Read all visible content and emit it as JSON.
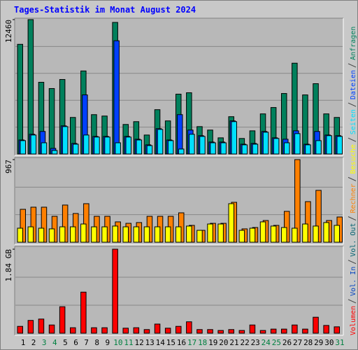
{
  "title": "Tages-Statistik im Monat August 2024",
  "chart_data": [
    {
      "type": "bar",
      "ylim": [
        0,
        12460
      ],
      "yticks": [
        12460
      ],
      "series": [
        {
          "name": "Anfragen",
          "color": "#00805c",
          "values": [
            10170,
            12460,
            6650,
            6070,
            6910,
            3390,
            7700,
            3650,
            3520,
            12200,
            2740,
            3000,
            1760,
            4110,
            3070,
            5550,
            5680,
            2540,
            2220,
            1500,
            3460,
            1440,
            2150,
            3720,
            4310,
            5610,
            8420,
            5480,
            6520,
            3720,
            3390
          ]
        },
        {
          "name": "Dateien",
          "color": "#0040ff",
          "values": [
            1300,
            1830,
            2090,
            520,
            2610,
            980,
            5480,
            1630,
            1630,
            10500,
            1630,
            1370,
            850,
            2350,
            1300,
            3650,
            2220,
            1700,
            1110,
            1110,
            3070,
            910,
            980,
            2090,
            1500,
            1370,
            2150,
            910,
            2090,
            1760,
            1700
          ]
        },
        {
          "name": "Seiten",
          "color": "#00e0ff",
          "values": [
            1240,
            1760,
            1040,
            330,
            2540,
            910,
            1760,
            1570,
            1570,
            1040,
            1570,
            1300,
            780,
            2280,
            1240,
            460,
            1830,
            1630,
            1040,
            1040,
            3000,
            850,
            910,
            2020,
            1440,
            1040,
            1890,
            850,
            1240,
            1700,
            1630
          ]
        }
      ]
    },
    {
      "type": "bar",
      "ylim": [
        0,
        967
      ],
      "yticks": [
        967
      ],
      "series": [
        {
          "name": "Besuche",
          "color": "#ffff00",
          "values": [
            164,
            180,
            164,
            156,
            180,
            180,
            213,
            180,
            180,
            189,
            180,
            180,
            180,
            180,
            180,
            180,
            189,
            139,
            213,
            213,
            451,
            139,
            164,
            238,
            189,
            172,
            164,
            213,
            189,
            230,
            197
          ]
        },
        {
          "name": "Rechner",
          "color": "#ff8000",
          "values": [
            385,
            410,
            410,
            303,
            435,
            336,
            451,
            303,
            303,
            238,
            221,
            230,
            303,
            303,
            303,
            344,
            197,
            139,
            221,
            221,
            467,
            156,
            172,
            254,
            197,
            361,
            967,
            475,
            607,
            254,
            295
          ]
        }
      ]
    },
    {
      "type": "bar",
      "ylim": [
        0,
        1.84
      ],
      "yticks": [
        {
          "value": 1.84,
          "label": "1.84 GB"
        }
      ],
      "categories": [
        "1",
        "2",
        "3",
        "4",
        "5",
        "6",
        "7",
        "8",
        "9",
        "10",
        "11",
        "12",
        "13",
        "14",
        "15",
        "16",
        "17",
        "18",
        "19",
        "20",
        "21",
        "22",
        "23",
        "24",
        "25",
        "26",
        "27",
        "28",
        "29",
        "30",
        "31"
      ],
      "category_colors": [
        "#000000",
        "#000000",
        "#008040",
        "#008040",
        "#000000",
        "#000000",
        "#000000",
        "#000000",
        "#000000",
        "#008040",
        "#008040",
        "#000000",
        "#000000",
        "#000000",
        "#000000",
        "#000000",
        "#008040",
        "#008040",
        "#000000",
        "#000000",
        "#000000",
        "#000000",
        "#000000",
        "#008040",
        "#008040",
        "#000000",
        "#000000",
        "#000000",
        "#000000",
        "#000000",
        "#008040"
      ],
      "series": [
        {
          "name": "Vol. Out",
          "color": "#006070"
        },
        {
          "name": "Vol. In",
          "color": "#0040c0"
        },
        {
          "name": "Volumen",
          "color": "#ff0000",
          "values": [
            0.15,
            0.28,
            0.31,
            0.18,
            0.58,
            0.12,
            0.9,
            0.12,
            0.12,
            1.84,
            0.11,
            0.12,
            0.08,
            0.2,
            0.11,
            0.15,
            0.25,
            0.08,
            0.08,
            0.06,
            0.08,
            0.06,
            0.18,
            0.06,
            0.09,
            0.09,
            0.18,
            0.09,
            0.35,
            0.17,
            0.14
          ]
        }
      ]
    }
  ]
}
